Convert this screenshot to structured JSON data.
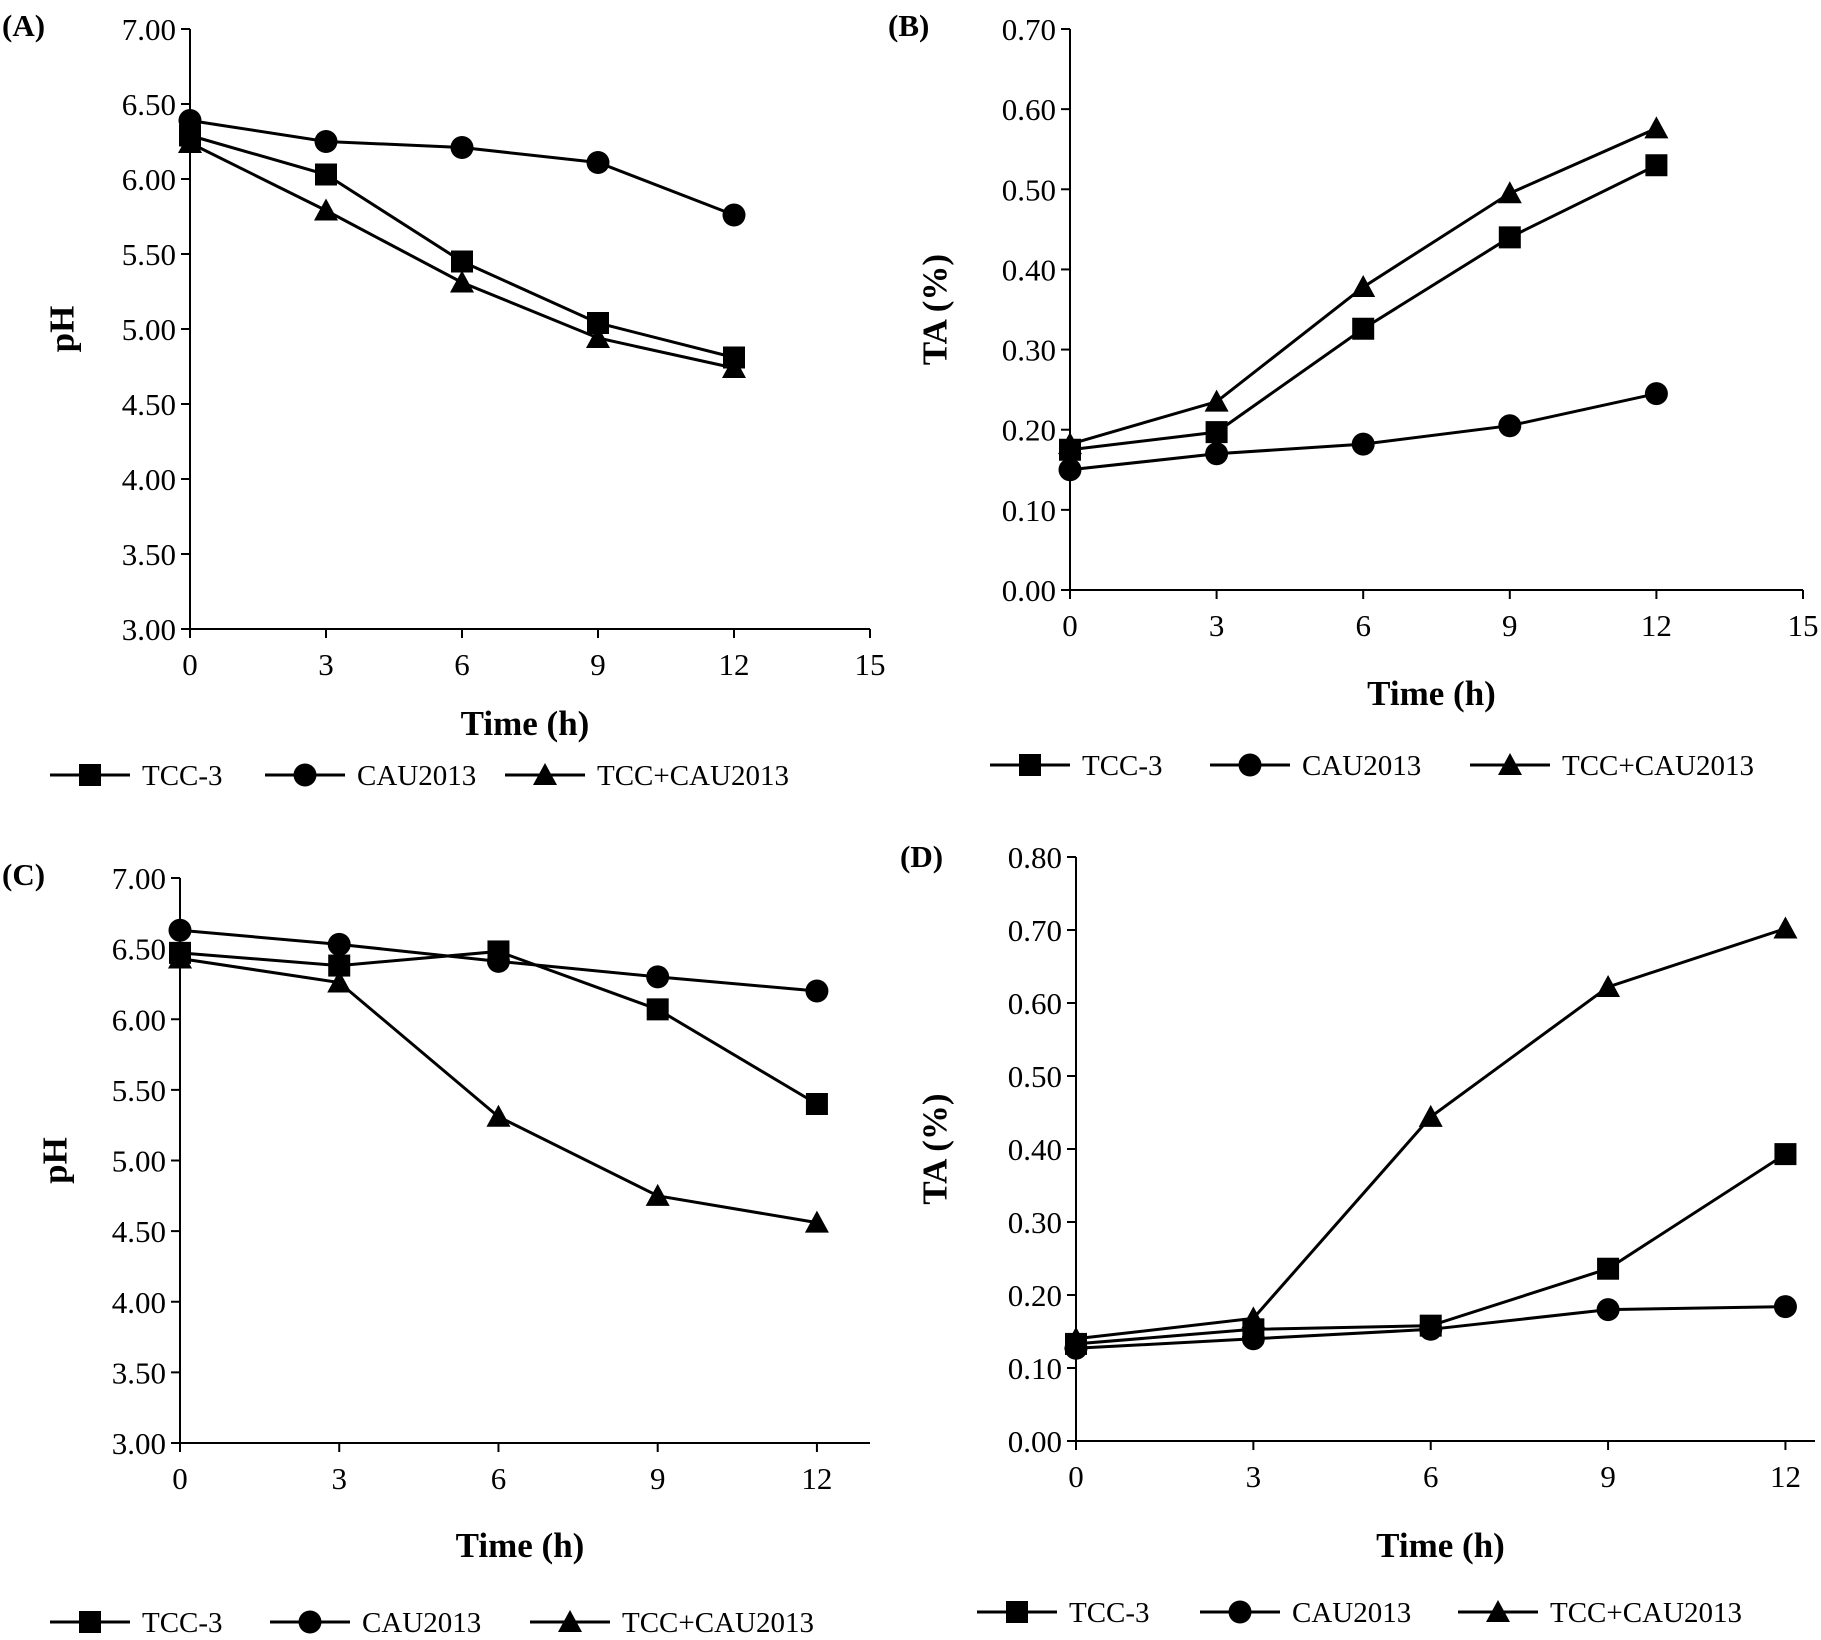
{
  "colors": {
    "ink": "#000000",
    "background": "#ffffff"
  },
  "legend_labels": [
    "TCC-3",
    "CAU2013",
    "TCC+CAU2013"
  ],
  "marker_shapes": [
    "square",
    "circle",
    "triangle"
  ],
  "chart_data": [
    {
      "type": "line",
      "panel_label": "(A)",
      "xlabel": "Time (h)",
      "ylabel": "pH",
      "x": [
        0,
        3,
        6,
        9,
        12
      ],
      "xticks": [
        "0",
        "3",
        "6",
        "9",
        "12",
        "15"
      ],
      "xlim": [
        0,
        15
      ],
      "yticks": [
        "3.00",
        "3.50",
        "4.00",
        "4.50",
        "5.00",
        "5.50",
        "6.00",
        "6.50",
        "7.00"
      ],
      "ylim": [
        3.0,
        7.0
      ],
      "legend": "bottom",
      "series": [
        {
          "name": "TCC-3",
          "marker": "square",
          "values": [
            6.29,
            6.03,
            5.45,
            5.04,
            4.81
          ]
        },
        {
          "name": "CAU2013",
          "marker": "circle",
          "values": [
            6.39,
            6.25,
            6.21,
            6.11,
            5.76
          ]
        },
        {
          "name": "TCC+CAU2013",
          "marker": "triangle",
          "values": [
            6.24,
            5.79,
            5.31,
            4.94,
            4.74
          ]
        }
      ]
    },
    {
      "type": "line",
      "panel_label": "(B)",
      "xlabel": "Time (h)",
      "ylabel": "TA (%)",
      "x": [
        0,
        3,
        6,
        9,
        12
      ],
      "xticks": [
        "0",
        "3",
        "6",
        "9",
        "12",
        "15"
      ],
      "xlim": [
        0,
        15
      ],
      "yticks": [
        "0.00",
        "0.10",
        "0.20",
        "0.30",
        "0.40",
        "0.50",
        "0.60",
        "0.70"
      ],
      "ylim": [
        0.0,
        0.7
      ],
      "legend": "bottom",
      "series": [
        {
          "name": "TCC-3",
          "marker": "square",
          "values": [
            0.175,
            0.197,
            0.326,
            0.44,
            0.53
          ]
        },
        {
          "name": "CAU2013",
          "marker": "circle",
          "values": [
            0.15,
            0.17,
            0.182,
            0.205,
            0.245
          ]
        },
        {
          "name": "TCC+CAU2013",
          "marker": "triangle",
          "values": [
            0.182,
            0.235,
            0.378,
            0.495,
            0.576
          ]
        }
      ]
    },
    {
      "type": "line",
      "panel_label": "(C)",
      "xlabel": "Time (h)",
      "ylabel": "pH",
      "x": [
        0,
        3,
        6,
        9,
        12
      ],
      "xticks": [
        "0",
        "3",
        "6",
        "9",
        "12"
      ],
      "xlim": [
        0,
        13
      ],
      "yticks": [
        "3.00",
        "3.50",
        "4.00",
        "4.50",
        "5.00",
        "5.50",
        "6.00",
        "6.50",
        "7.00"
      ],
      "ylim": [
        3.0,
        7.0
      ],
      "legend": "bottom",
      "series": [
        {
          "name": "TCC-3",
          "marker": "square",
          "values": [
            6.47,
            6.38,
            6.48,
            6.07,
            5.4
          ]
        },
        {
          "name": "CAU2013",
          "marker": "circle",
          "values": [
            6.63,
            6.53,
            6.41,
            6.3,
            6.2
          ]
        },
        {
          "name": "TCC+CAU2013",
          "marker": "triangle",
          "values": [
            6.43,
            6.26,
            5.31,
            4.75,
            4.56
          ]
        }
      ]
    },
    {
      "type": "line",
      "panel_label": "(D)",
      "xlabel": "Time (h)",
      "ylabel": "TA (%)",
      "x": [
        0,
        3,
        6,
        9,
        12
      ],
      "xticks": [
        "0",
        "3",
        "6",
        "9",
        "12"
      ],
      "xlim": [
        0,
        12.5
      ],
      "yticks": [
        "0.00",
        "0.10",
        "0.20",
        "0.30",
        "0.40",
        "0.50",
        "0.60",
        "0.70",
        "0.80"
      ],
      "ylim": [
        0.0,
        0.8
      ],
      "legend": "bottom",
      "series": [
        {
          "name": "TCC-3",
          "marker": "square",
          "values": [
            0.133,
            0.153,
            0.158,
            0.236,
            0.393
          ]
        },
        {
          "name": "CAU2013",
          "marker": "circle",
          "values": [
            0.127,
            0.14,
            0.153,
            0.18,
            0.184
          ]
        },
        {
          "name": "TCC+CAU2013",
          "marker": "triangle",
          "values": [
            0.14,
            0.168,
            0.444,
            0.622,
            0.702
          ]
        }
      ]
    }
  ]
}
